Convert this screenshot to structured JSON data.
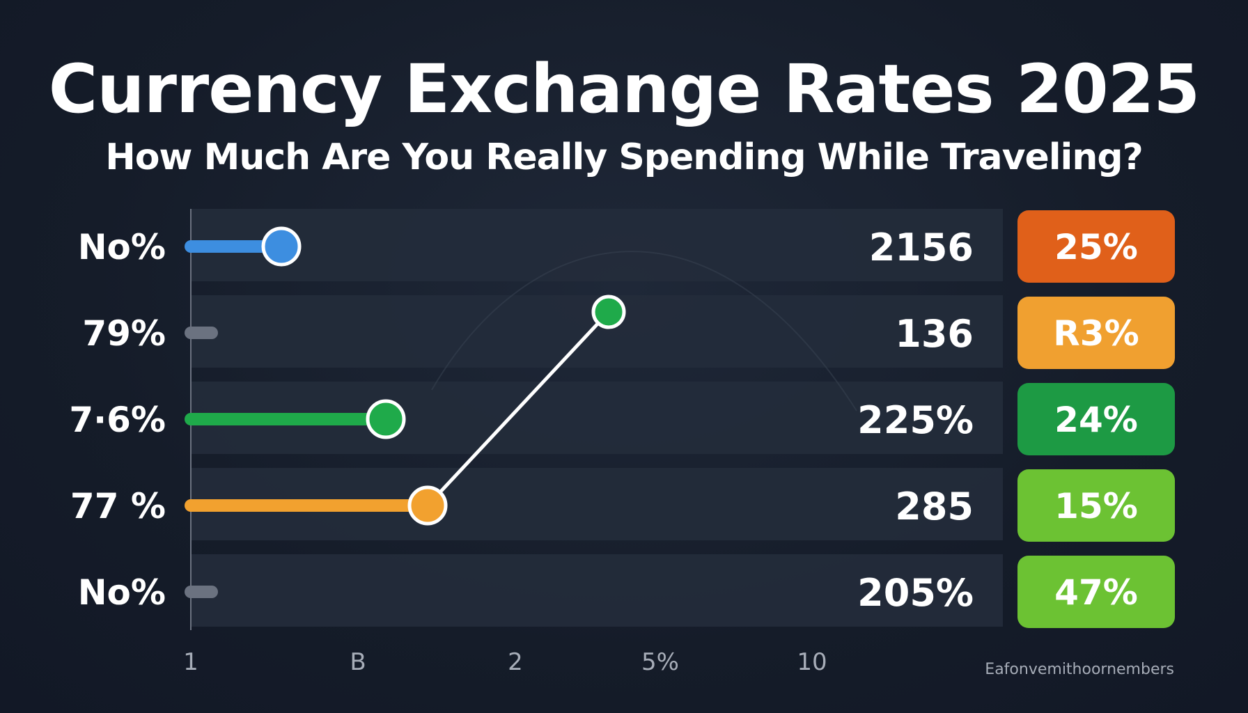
{
  "header": {
    "title": "Currency Exchange Rates 2025",
    "subtitle": "How Much Are You Really Spending While Traveling?"
  },
  "chart_data": {
    "type": "bar",
    "title": "Currency Exchange Rates 2025",
    "subtitle": "How Much Are You Really Spending While Traveling?",
    "row_labels": [
      "No%",
      "79%",
      "7·6%",
      "77 %",
      "No%"
    ],
    "values": [
      1.3,
      0.3,
      2.8,
      3.4,
      0.3
    ],
    "bar_colors": [
      "#3d8ee0",
      "#6b7280",
      "#1faa4a",
      "#f2a12f",
      "#6b7280"
    ],
    "marker_rows": [
      0,
      2,
      3
    ],
    "connector": {
      "from": {
        "x": 3.4,
        "row": 3
      },
      "to": {
        "x": 6.0,
        "row": 1
      },
      "marker_color": "#1faa4a"
    },
    "right_values": [
      "2156",
      "136",
      "225%",
      "285",
      "205%"
    ],
    "badges": [
      {
        "label": "25%",
        "color": "#e0601a"
      },
      {
        "label": "R3%",
        "color": "#f0a030"
      },
      {
        "label": "24%",
        "color": "#1d9a44"
      },
      {
        "label": "15%",
        "color": "#6cc233"
      },
      {
        "label": "47%",
        "color": "#6cc233"
      }
    ],
    "x_ticks": [
      "1",
      "B",
      "2",
      "5%",
      "10"
    ],
    "xlim": [
      0,
      8
    ],
    "source_text": "Eafonvemithoornembers"
  }
}
